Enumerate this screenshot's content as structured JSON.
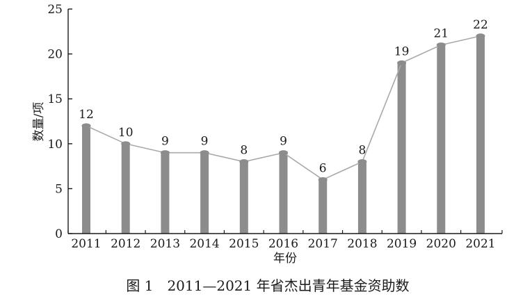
{
  "chart_data": {
    "type": "bar",
    "categories": [
      "2011",
      "2012",
      "2013",
      "2014",
      "2015",
      "2016",
      "2017",
      "2018",
      "2019",
      "2020",
      "2021"
    ],
    "values": [
      12,
      10,
      9,
      9,
      8,
      9,
      6,
      8,
      19,
      21,
      22
    ],
    "data_labels": [
      "12",
      "10",
      "9",
      "9",
      "8",
      "9",
      "6",
      "8",
      "19",
      "21",
      "22"
    ],
    "overlay_line": true,
    "xlabel": "年份",
    "ylabel": "数量/项",
    "ylim": [
      0,
      25
    ],
    "yticks": [
      "0",
      "5",
      "10",
      "15",
      "20",
      "25"
    ],
    "ytick_values": [
      0,
      5,
      10,
      15,
      20,
      25
    ],
    "grid": false,
    "legend": "none",
    "caption": "图 1　2011—2021 年省杰出青年基金资助数",
    "colors": {
      "bar": "#8c8c8c",
      "line": "#a9a9a9",
      "marker": "#8c8c8c",
      "axis": "#1a1a1a"
    }
  }
}
